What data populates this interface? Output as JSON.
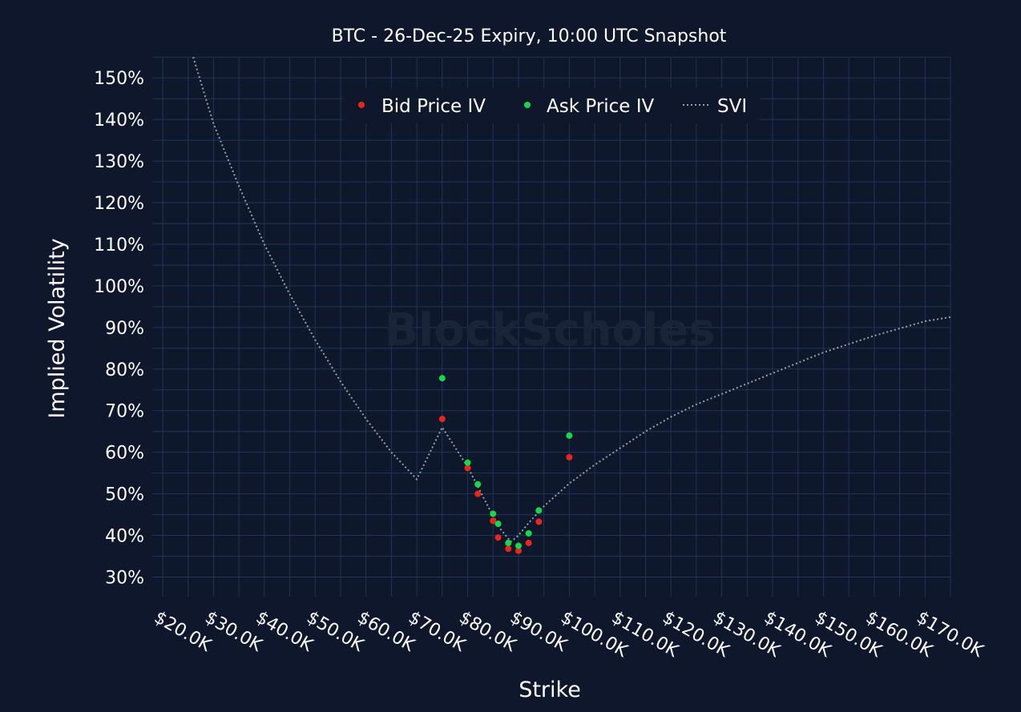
{
  "chart_data": {
    "type": "scatter",
    "title": "BTC - 26-Dec-25 Expiry, 10:00 UTC Snapshot",
    "xlabel": "Strike",
    "ylabel": "Implied Volatility",
    "watermark": "BlockScholes",
    "xlim": [
      15000,
      175000
    ],
    "ylim": [
      25,
      155
    ],
    "x_ticks": [
      20000,
      30000,
      40000,
      50000,
      60000,
      70000,
      80000,
      90000,
      100000,
      110000,
      120000,
      130000,
      140000,
      150000,
      160000,
      170000
    ],
    "x_tick_labels": [
      "$20.0K",
      "$30.0K",
      "$40.0K",
      "$50.0K",
      "$60.0K",
      "$70.0K",
      "$80.0K",
      "$90.0K",
      "$100.0K",
      "$110.0K",
      "$120.0K",
      "$130.0K",
      "$140.0K",
      "$150.0K",
      "$160.0K",
      "$170.0K"
    ],
    "y_ticks": [
      30,
      40,
      50,
      60,
      70,
      80,
      90,
      100,
      110,
      120,
      130,
      140,
      150
    ],
    "y_tick_labels": [
      "30%",
      "40%",
      "50%",
      "60%",
      "70%",
      "80%",
      "90%",
      "100%",
      "110%",
      "120%",
      "130%",
      "140%",
      "150%"
    ],
    "grid": true,
    "legend_position": "top-center",
    "colors": {
      "background": "#0e172b",
      "grid": "#223458",
      "bid": "#e8261a",
      "ask": "#18d84a",
      "svi": "#9aa0a6"
    },
    "series": [
      {
        "name": "Bid Price IV",
        "kind": "markers",
        "points": [
          [
            75000,
            68
          ],
          [
            80000,
            56.2
          ],
          [
            82000,
            50
          ],
          [
            85000,
            43.5
          ],
          [
            86000,
            39.5
          ],
          [
            88000,
            36.8
          ],
          [
            90000,
            36.3
          ],
          [
            92000,
            38.2
          ],
          [
            94000,
            43.3
          ],
          [
            100000,
            58.8
          ]
        ]
      },
      {
        "name": "Ask Price IV",
        "kind": "markers",
        "points": [
          [
            75000,
            77.8
          ],
          [
            80000,
            57.5
          ],
          [
            82000,
            52.3
          ],
          [
            85000,
            45.2
          ],
          [
            86000,
            42.8
          ],
          [
            88000,
            38.2
          ],
          [
            90000,
            37.5
          ],
          [
            92000,
            40.5
          ],
          [
            94000,
            46
          ],
          [
            100000,
            64
          ]
        ]
      },
      {
        "name": "SVI",
        "kind": "dotted-line",
        "points": [
          [
            26000,
            155
          ],
          [
            30000,
            139
          ],
          [
            35000,
            124
          ],
          [
            40000,
            110
          ],
          [
            45000,
            98
          ],
          [
            50000,
            87
          ],
          [
            55000,
            77
          ],
          [
            60000,
            68
          ],
          [
            65000,
            60
          ],
          [
            70000,
            53.5
          ],
          [
            75000,
            66
          ],
          [
            80000,
            56.5
          ],
          [
            84000,
            47
          ],
          [
            86500,
            41.5
          ],
          [
            88500,
            38.5
          ],
          [
            90000,
            40
          ],
          [
            92000,
            43
          ],
          [
            95000,
            47
          ],
          [
            100000,
            52.5
          ],
          [
            105000,
            57
          ],
          [
            110000,
            61
          ],
          [
            115000,
            65
          ],
          [
            120000,
            68.5
          ],
          [
            125000,
            71.5
          ],
          [
            130000,
            74
          ],
          [
            140000,
            79
          ],
          [
            150000,
            84
          ],
          [
            160000,
            88
          ],
          [
            170000,
            91.5
          ],
          [
            175000,
            92.5
          ]
        ]
      }
    ]
  }
}
